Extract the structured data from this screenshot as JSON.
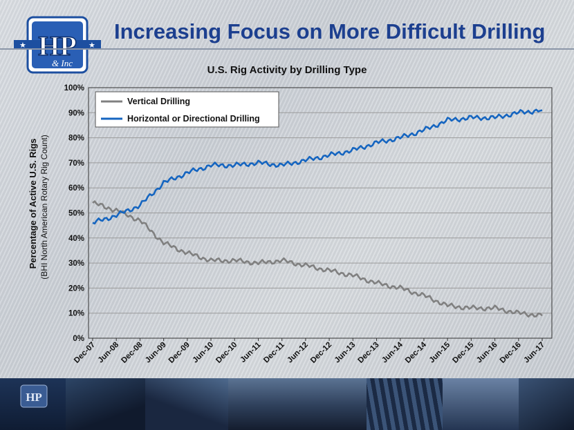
{
  "header": {
    "title": "Increasing Focus on More Difficult Drilling",
    "logo_text": "H&P"
  },
  "colors": {
    "title": "#1c3f8f",
    "vertical": "#808080",
    "horizontal": "#1565c0"
  },
  "footer": {
    "panels": [
      "H&P logo panel",
      "rig worker",
      "rig floor",
      "drilling rig at dusk",
      "drill pipe",
      "derrick interior",
      "crew member"
    ]
  },
  "chart_data": {
    "type": "line",
    "title": "U.S. Rig Activity by Drilling Type",
    "ylabel": "Percentage of Active U.S. Rigs",
    "ylabel_sub": "(BHI North American Rotary Rig Count)",
    "xlabel": "",
    "ylim": [
      0,
      100
    ],
    "yticks": [
      "0%",
      "10%",
      "20%",
      "30%",
      "40%",
      "50%",
      "60%",
      "70%",
      "80%",
      "90%",
      "100%"
    ],
    "categories": [
      "Dec-07",
      "Jun-08",
      "Dec-08",
      "Jun-09",
      "Dec-09",
      "Jun-10",
      "Dec-10",
      "Jun-11",
      "Dec-11",
      "Jun-12",
      "Dec-12",
      "Jun-13",
      "Dec-13",
      "Jun-14",
      "Dec-14",
      "Jun-15",
      "Dec-15",
      "Jun-16",
      "Dec-16",
      "Jun-17"
    ],
    "grid": true,
    "legend_position": "top-left",
    "series": [
      {
        "name": "Vertical Drilling",
        "values": [
          54,
          51,
          47,
          38,
          34,
          31,
          31,
          30,
          31,
          29,
          27,
          25,
          22,
          20,
          17,
          13,
          12,
          12,
          10,
          9
        ]
      },
      {
        "name": "Horizontal or Directional Drilling",
        "values": [
          46,
          49,
          53,
          62,
          66,
          69,
          69,
          70,
          69,
          71,
          73,
          75,
          78,
          80,
          83,
          87,
          88,
          88,
          90,
          91
        ]
      }
    ]
  }
}
